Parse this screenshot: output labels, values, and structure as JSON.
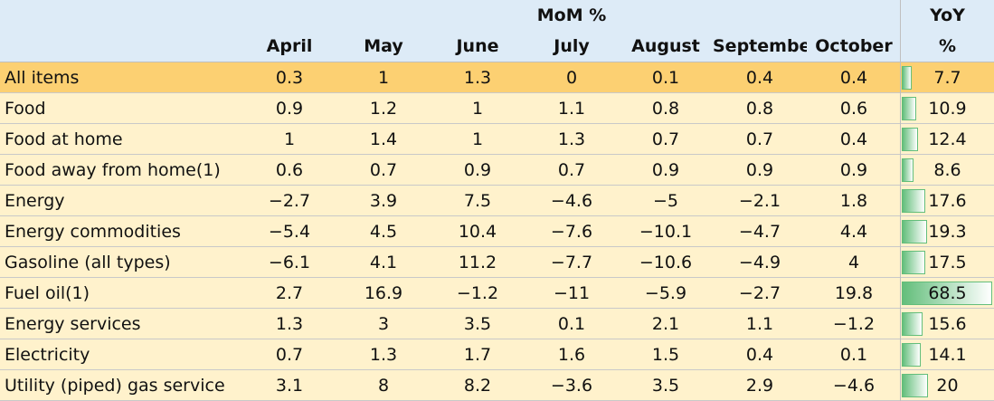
{
  "header": {
    "group_mom": "MoM %",
    "group_yoy": "YoY",
    "yoy_unit": "%",
    "months": [
      "April",
      "May",
      "June",
      "July",
      "August",
      "September",
      "October"
    ]
  },
  "rows": [
    {
      "label": "All items",
      "mom": [
        "0.3",
        "1",
        "1.3",
        "0",
        "0.1",
        "0.4",
        "0.4"
      ],
      "yoy": 7.7
    },
    {
      "label": "Food",
      "mom": [
        "0.9",
        "1.2",
        "1",
        "1.1",
        "0.8",
        "0.8",
        "0.6"
      ],
      "yoy": 10.9
    },
    {
      "label": "Food at home",
      "mom": [
        "1",
        "1.4",
        "1",
        "1.3",
        "0.7",
        "0.7",
        "0.4"
      ],
      "yoy": 12.4
    },
    {
      "label": "Food away from home(1)",
      "mom": [
        "0.6",
        "0.7",
        "0.9",
        "0.7",
        "0.9",
        "0.9",
        "0.9"
      ],
      "yoy": 8.6
    },
    {
      "label": "Energy",
      "mom": [
        "−2.7",
        "3.9",
        "7.5",
        "−4.6",
        "−5",
        "−2.1",
        "1.8"
      ],
      "yoy": 17.6
    },
    {
      "label": "Energy commodities",
      "mom": [
        "−5.4",
        "4.5",
        "10.4",
        "−7.6",
        "−10.1",
        "−4.7",
        "4.4"
      ],
      "yoy": 19.3
    },
    {
      "label": "Gasoline (all types)",
      "mom": [
        "−6.1",
        "4.1",
        "11.2",
        "−7.7",
        "−10.6",
        "−4.9",
        "4"
      ],
      "yoy": 17.5
    },
    {
      "label": "Fuel oil(1)",
      "mom": [
        "2.7",
        "16.9",
        "−1.2",
        "−11",
        "−5.9",
        "−2.7",
        "19.8"
      ],
      "yoy": 68.5
    },
    {
      "label": "Energy services",
      "mom": [
        "1.3",
        "3",
        "3.5",
        "0.1",
        "2.1",
        "1.1",
        "−1.2"
      ],
      "yoy": 15.6
    },
    {
      "label": "Electricity",
      "mom": [
        "0.7",
        "1.3",
        "1.7",
        "1.6",
        "1.5",
        "0.4",
        "0.1"
      ],
      "yoy": 14.1
    },
    {
      "label": "Utility (piped) gas service",
      "mom": [
        "3.1",
        "8",
        "8.2",
        "−3.6",
        "3.5",
        "2.9",
        "−4.6"
      ],
      "yoy": 20
    }
  ]
}
